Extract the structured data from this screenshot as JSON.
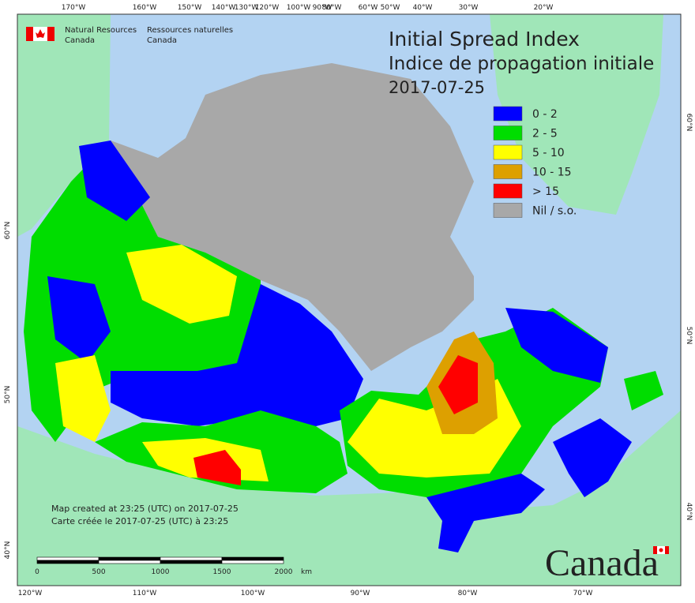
{
  "header": {
    "agency_en": [
      "Natural Resources",
      "Canada"
    ],
    "agency_fr": [
      "Ressources naturelles",
      "Canada"
    ]
  },
  "title": {
    "en": "Initial Spread Index",
    "fr": "Indice de propagation initiale",
    "date": "2017-07-25"
  },
  "legend": [
    {
      "label": "0 - 2",
      "color": "#0000ff"
    },
    {
      "label": "2 - 5",
      "color": "#00dd00"
    },
    {
      "label": "5 - 10",
      "color": "#ffff00"
    },
    {
      "label": "10 - 15",
      "color": "#dda000"
    },
    {
      "label": "> 15",
      "color": "#ff0000"
    },
    {
      "label": "Nil / s.o.",
      "color": "#a8a8a8"
    }
  ],
  "top_longitudes": [
    "170°W",
    "160°W",
    "150°W",
    "140°W",
    "130°W",
    "120°W",
    "100°W",
    "90°W",
    "80°W",
    "60°W",
    "50°W",
    "40°W",
    "30°W",
    "20°W"
  ],
  "bottom_longitudes": [
    "120°W",
    "110°W",
    "100°W",
    "90°W",
    "80°W",
    "70°W"
  ],
  "left_latitudes": [
    "60°N",
    "50°N",
    "40°N"
  ],
  "right_latitudes": [
    "60°N",
    "50°N",
    "40°N"
  ],
  "notes": [
    "Map created at 23:25 (UTC) on 2017-07-25",
    "Carte créée le 2017-07-25 (UTC) à 23:25"
  ],
  "scale_bar": {
    "labels": [
      "0",
      "500",
      "1000",
      "1500",
      "2000"
    ],
    "unit": "km"
  },
  "wordmark": "Canada"
}
